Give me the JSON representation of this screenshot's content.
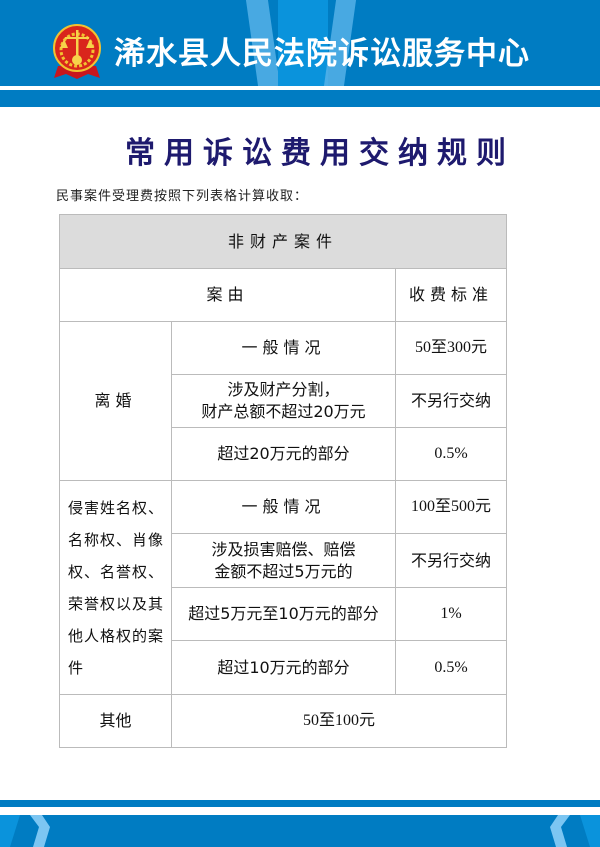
{
  "header": {
    "court_name": "浠水县人民法院诉讼服务中心",
    "emblem": "court-emblem"
  },
  "colors": {
    "brand_blue": "#007cc2",
    "title": "#1e1a6e",
    "table_header": "#dcdcdc"
  },
  "title": "常用诉讼费用交纳规则",
  "intro": "民事案件受理费按照下列表格计算收取：",
  "table": {
    "section": "非财产案件",
    "col_reason": "案由",
    "col_fee": "收费标准",
    "divorce": {
      "label": "离婚",
      "rows": [
        {
          "case": "一般情况",
          "fee": "50至300元"
        },
        {
          "case_line1": "涉及财产分割，",
          "case_line2": "财产总额不超过20万元",
          "fee": "不另行交纳"
        },
        {
          "case": "超过20万元的部分",
          "fee": "0.5%"
        }
      ]
    },
    "personality": {
      "label": "侵害姓名权、名称权、肖像权、名誉权、荣誉权以及其他人格权的案件",
      "rows": [
        {
          "case": "一般情况",
          "fee": "100至500元"
        },
        {
          "case_line1": "涉及损害赔偿、赔偿",
          "case_line2": "金额不超过5万元的",
          "fee": "不另行交纳"
        },
        {
          "case": "超过5万元至10万元的部分",
          "fee": "1%"
        },
        {
          "case": "超过10万元的部分",
          "fee": "0.5%"
        }
      ]
    },
    "other": {
      "label": "其他",
      "fee": "50至100元"
    }
  }
}
